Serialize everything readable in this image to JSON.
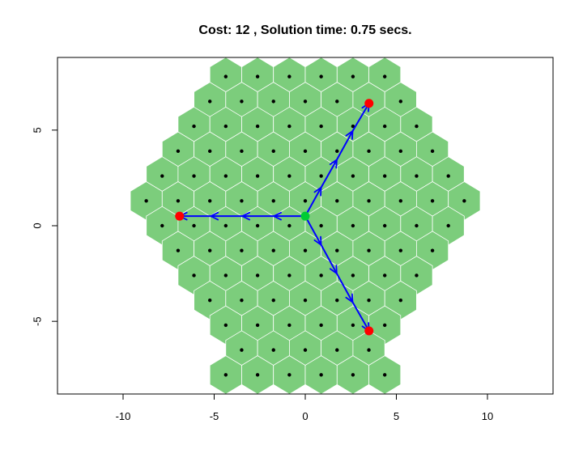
{
  "chart_data": {
    "type": "scatter",
    "title": "Cost: 12 , Solution time: 0.75 secs.",
    "xlabel": "",
    "ylabel": "",
    "xlim": [
      -13.6,
      13.6
    ],
    "ylim": [
      -8.8,
      8.8
    ],
    "x_ticks": [
      -10,
      -5,
      0,
      5,
      10
    ],
    "x_tick_labels": [
      "-10",
      "-5",
      "0",
      "5",
      "10"
    ],
    "y_ticks": [
      -5,
      0,
      5
    ],
    "y_tick_labels": [
      "-5",
      "0",
      "5"
    ],
    "grid": false,
    "hex_grid": {
      "hex_spacing": 1.745,
      "cell_color": "#7ccd7c",
      "cell_border": "#ffffff",
      "cell_center_color": "#000000",
      "rows": [
        {
          "y": 7.8,
          "x": [
            -4.363,
            -2.618,
            -0.873,
            0.873,
            2.618,
            4.363
          ]
        },
        {
          "y": 6.5,
          "x": [
            -5.236,
            -3.491,
            -1.745,
            0.0,
            1.745,
            3.491,
            5.236
          ]
        },
        {
          "y": 5.2,
          "x": [
            -6.109,
            -4.363,
            -2.618,
            -0.873,
            0.873,
            2.618,
            4.363,
            6.109
          ]
        },
        {
          "y": 3.9,
          "x": [
            -6.981,
            -5.236,
            -3.491,
            -1.745,
            0.0,
            1.745,
            3.491,
            5.236,
            6.981
          ]
        },
        {
          "y": 2.6,
          "x": [
            -7.854,
            -6.109,
            -4.363,
            -2.618,
            -0.873,
            0.873,
            2.618,
            4.363,
            6.109,
            7.854
          ]
        },
        {
          "y": 1.3,
          "x": [
            -8.727,
            -6.981,
            -5.236,
            -3.491,
            -1.745,
            0.0,
            1.745,
            3.491,
            5.236,
            6.981,
            8.727
          ]
        },
        {
          "y": 0.0,
          "x": [
            -7.854,
            -6.109,
            -4.363,
            -2.618,
            -0.873,
            0.873,
            2.618,
            4.363,
            6.109,
            7.854
          ]
        },
        {
          "y": -1.3,
          "x": [
            -6.981,
            -5.236,
            -3.491,
            -1.745,
            0.0,
            1.745,
            3.491,
            5.236,
            6.981
          ]
        },
        {
          "y": -2.6,
          "x": [
            -6.109,
            -4.363,
            -2.618,
            -0.873,
            0.873,
            2.618,
            4.363,
            6.109
          ]
        },
        {
          "y": -3.9,
          "x": [
            -5.236,
            -3.491,
            -1.745,
            0.0,
            1.745,
            3.491,
            5.236
          ]
        },
        {
          "y": -5.2,
          "x": [
            -4.363,
            -2.618,
            -0.873,
            0.873,
            2.618,
            4.363
          ]
        },
        {
          "y": -6.5,
          "x": [
            -3.491,
            -1.745,
            0.0,
            1.745,
            3.491
          ]
        },
        {
          "y": -7.8,
          "x": [
            -4.363,
            -2.618,
            -0.873,
            0.873,
            2.618,
            4.363
          ]
        }
      ]
    },
    "source_point": {
      "x": 0.0,
      "y": 0.5,
      "color": "#00cc33"
    },
    "target_points": [
      {
        "x": -6.9,
        "y": 0.5,
        "color": "#ff0000"
      },
      {
        "x": 3.5,
        "y": 6.4,
        "color": "#ff0000"
      },
      {
        "x": 3.5,
        "y": -5.5,
        "color": "#ff0000"
      }
    ],
    "paths": [
      {
        "color": "#0000ff",
        "points": [
          [
            0.0,
            0.5
          ],
          [
            -1.73,
            0.5
          ],
          [
            -3.46,
            0.5
          ],
          [
            -5.19,
            0.5
          ],
          [
            -6.9,
            0.5
          ]
        ]
      },
      {
        "color": "#0000ff",
        "points": [
          [
            0.0,
            0.5
          ],
          [
            0.87,
            2.0
          ],
          [
            1.73,
            3.45
          ],
          [
            2.6,
            4.95
          ],
          [
            3.5,
            6.4
          ]
        ]
      },
      {
        "color": "#0000ff",
        "points": [
          [
            0.0,
            0.5
          ],
          [
            0.87,
            -1.0
          ],
          [
            1.73,
            -2.5
          ],
          [
            2.6,
            -4.0
          ],
          [
            3.5,
            -5.5
          ]
        ]
      }
    ]
  }
}
